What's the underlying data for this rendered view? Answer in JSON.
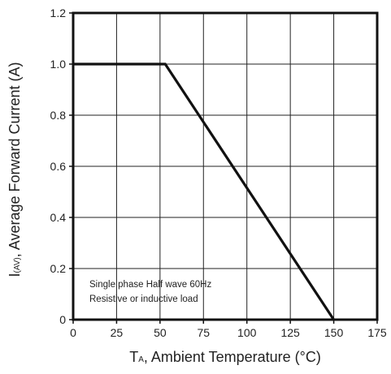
{
  "chart_data": {
    "type": "line",
    "title": "",
    "xlabel": {
      "main": "T",
      "sub": "A",
      "rest": ", Ambient Temperature (°C)"
    },
    "ylabel": {
      "main": "I",
      "sub": "(AV)",
      "rest": ", Average Forward Current (A)"
    },
    "xlim": [
      0,
      175
    ],
    "ylim": [
      0,
      1.2
    ],
    "x_ticks": [
      0,
      25,
      50,
      75,
      100,
      125,
      150,
      175
    ],
    "x_tick_labels": [
      "0",
      "25",
      "50",
      "75",
      "100",
      "125",
      "150",
      "175"
    ],
    "y_ticks": [
      0,
      0.2,
      0.4,
      0.6,
      0.8,
      1.0,
      1.2
    ],
    "y_tick_labels": [
      "0",
      "0.2",
      "0.4",
      "0.6",
      "0.8",
      "1.0",
      "1.2"
    ],
    "grid": true,
    "series": [
      {
        "x": [
          0,
          53,
          150
        ],
        "y": [
          1.0,
          1.0,
          0
        ]
      }
    ],
    "annotations": [
      "Single phase Half wave 60Hz",
      "Resistive or inductive load"
    ]
  }
}
